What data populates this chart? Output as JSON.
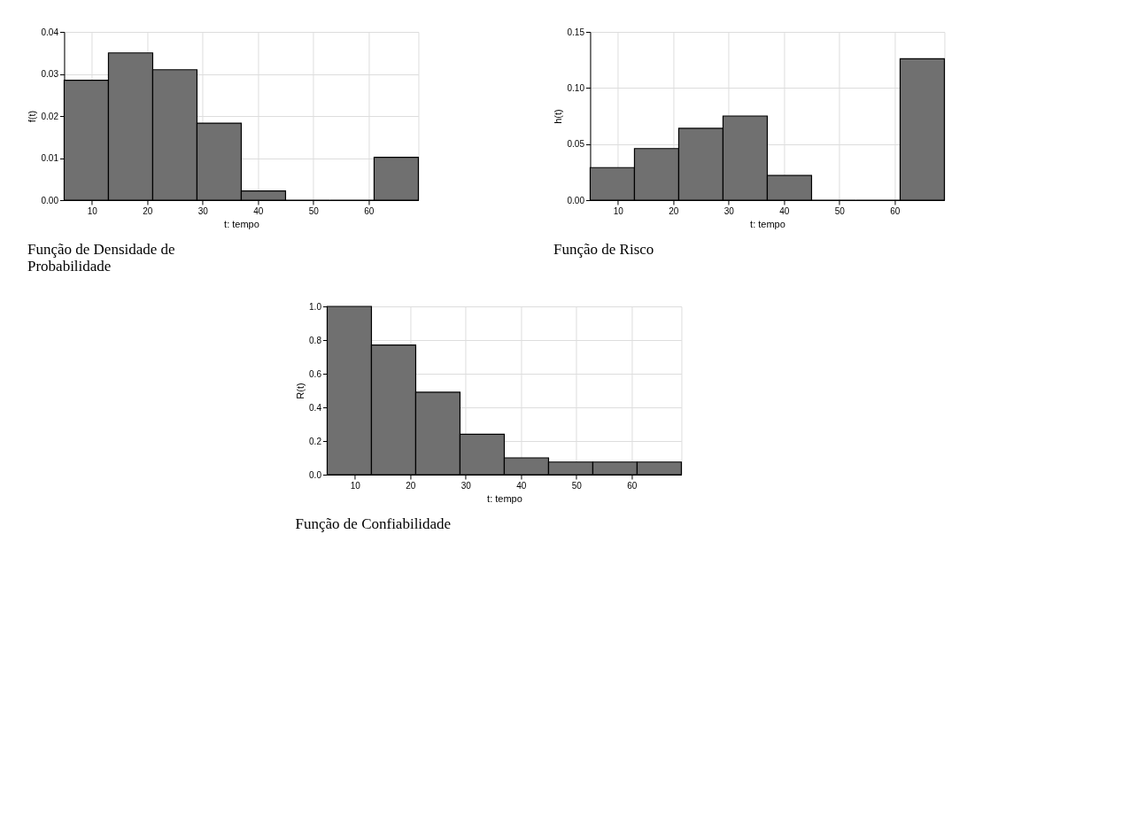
{
  "chart_data": [
    {
      "type": "histogram",
      "title": "Função de Densidade de Probabilidade",
      "xlabel": "t: tempo",
      "ylabel": "f(t)",
      "bins": [
        5,
        13,
        21,
        29,
        37,
        45,
        53,
        61,
        69
      ],
      "values": [
        0.0285,
        0.035,
        0.031,
        0.0183,
        0.0022,
        0,
        0,
        0.0102
      ],
      "color": "#707070",
      "xlim": [
        5,
        69
      ],
      "xticks": [
        10,
        20,
        30,
        40,
        50,
        60
      ],
      "ylim": [
        0,
        0.04
      ],
      "yticks": [
        {
          "value": 0,
          "label": "0.00"
        },
        {
          "value": 0.01,
          "label": "0.01"
        },
        {
          "value": 0.02,
          "label": "0.02"
        },
        {
          "value": 0.03,
          "label": "0.03"
        },
        {
          "value": 0.04,
          "label": "0.04"
        }
      ],
      "grid": true
    },
    {
      "type": "histogram",
      "title": "Função de Risco",
      "xlabel": "t: tempo",
      "ylabel": "h(t)",
      "bins": [
        5,
        13,
        21,
        29,
        37,
        45,
        53,
        61,
        69
      ],
      "values": [
        0.029,
        0.046,
        0.064,
        0.075,
        0.022,
        0,
        0,
        0.126
      ],
      "color": "#707070",
      "xlim": [
        5,
        69
      ],
      "xticks": [
        10,
        20,
        30,
        40,
        50,
        60
      ],
      "ylim": [
        0,
        0.15
      ],
      "yticks": [
        {
          "value": 0,
          "label": "0.00"
        },
        {
          "value": 0.05,
          "label": "0.05"
        },
        {
          "value": 0.1,
          "label": "0.10"
        },
        {
          "value": 0.15,
          "label": "0.15"
        }
      ],
      "grid": true
    },
    {
      "type": "histogram",
      "title": "Função de Confiabilidade",
      "xlabel": "t: tempo",
      "ylabel": "R(t)",
      "bins": [
        5,
        13,
        21,
        29,
        37,
        45,
        53,
        61,
        69
      ],
      "values": [
        1.0,
        0.77,
        0.49,
        0.24,
        0.1,
        0.075,
        0.075,
        0.075
      ],
      "color": "#707070",
      "xlim": [
        5,
        69
      ],
      "xticks": [
        10,
        20,
        30,
        40,
        50,
        60
      ],
      "ylim": [
        0,
        1.0
      ],
      "yticks": [
        {
          "value": 0,
          "label": "0.0"
        },
        {
          "value": 0.2,
          "label": "0.2"
        },
        {
          "value": 0.4,
          "label": "0.4"
        },
        {
          "value": 0.6,
          "label": "0.6"
        },
        {
          "value": 0.8,
          "label": "0.8"
        },
        {
          "value": 1.0,
          "label": "1.0"
        }
      ],
      "grid": true
    }
  ]
}
